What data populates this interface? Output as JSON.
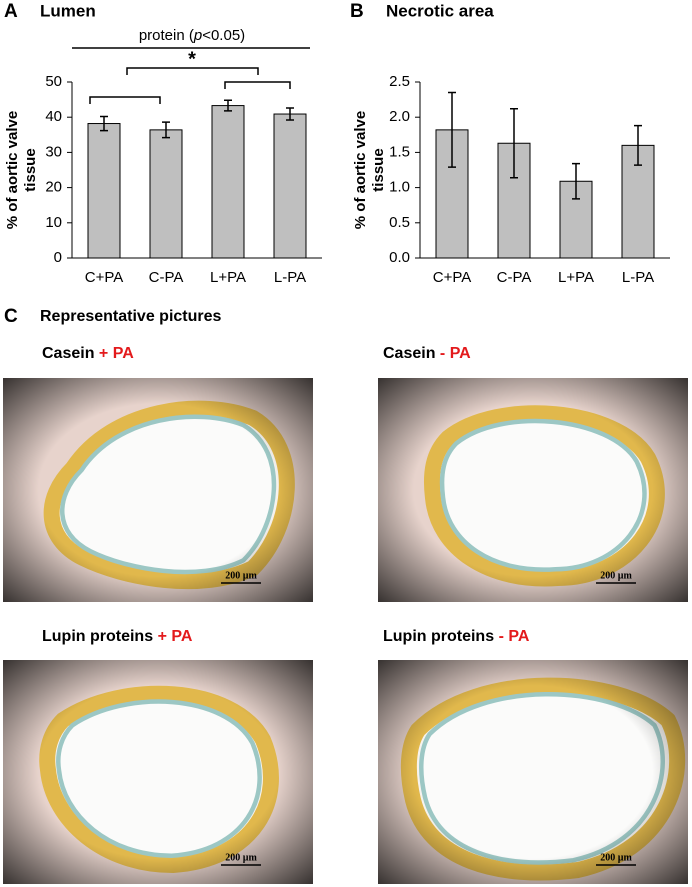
{
  "chart_data": [
    {
      "type": "bar",
      "panel": "A",
      "title": "Lumen",
      "ylabel": "% of aortic valve tissue",
      "categories": [
        "C+PA",
        "C-PA",
        "L+PA",
        "L-PA"
      ],
      "values": [
        38.2,
        36.4,
        43.3,
        40.9
      ],
      "errors": [
        2.0,
        2.2,
        1.5,
        1.7
      ],
      "color": "#bfbfbf",
      "ylim": [
        0,
        50
      ],
      "yticks": [
        0,
        10,
        20,
        30,
        40,
        50
      ],
      "annotations": {
        "protein": {
          "pre": "protein (",
          "italic": "p",
          "post": "<0.05)"
        },
        "star": "*"
      }
    },
    {
      "type": "bar",
      "panel": "B",
      "title": "Necrotic area",
      "ylabel": "% of aortic valve tissue",
      "categories": [
        "C+PA",
        "C-PA",
        "L+PA",
        "L-PA"
      ],
      "values": [
        1.82,
        1.63,
        1.09,
        1.6
      ],
      "errors": [
        0.53,
        0.49,
        0.25,
        0.28
      ],
      "color": "#bfbfbf",
      "ylim": [
        0,
        2.5
      ],
      "yticks": [
        {
          "value": 0,
          "label": "0.0"
        },
        0.5,
        {
          "value": 1,
          "label": "1.0"
        },
        1.5,
        {
          "value": 2,
          "label": "2.0"
        },
        2.5
      ]
    }
  ],
  "pictures": {
    "panel": "C",
    "title": "Representative pictures",
    "items": [
      {
        "name": "Casein",
        "treatment": "+ PA",
        "scale": "200 µm"
      },
      {
        "name": "Casein",
        "treatment": "- PA",
        "scale": "200 µm"
      },
      {
        "name": "Lupin proteins",
        "treatment": "+ PA",
        "scale": "200 µm"
      },
      {
        "name": "Lupin proteins",
        "treatment": "- PA",
        "scale": "200 µm"
      }
    ]
  }
}
